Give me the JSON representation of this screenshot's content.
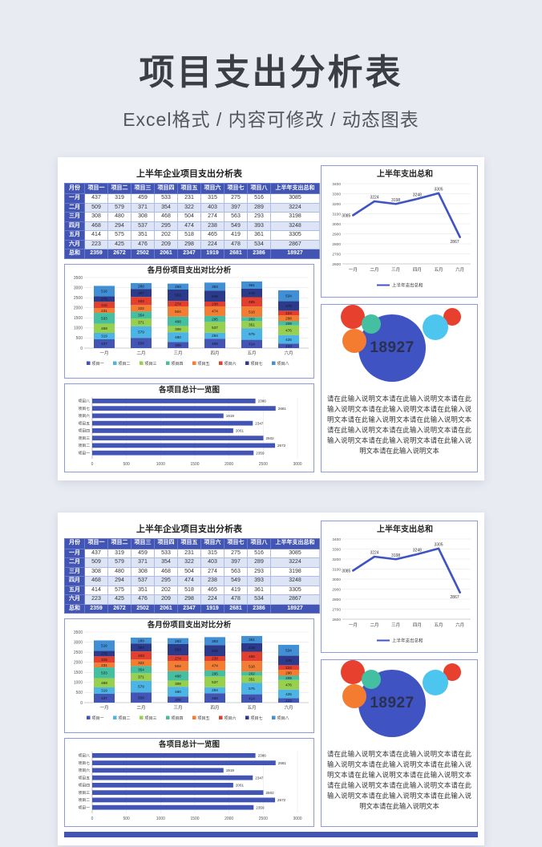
{
  "header": {
    "title": "项目支出分析表",
    "subtitle": "Excel格式 / 内容可修改 / 动态图表"
  },
  "panels": [
    {
      "bottom_strip": false
    },
    {
      "bottom_strip": true
    }
  ],
  "panel": {
    "table": {
      "title": "上半年企业项目支出分析表",
      "columns": [
        "月份",
        "项目一",
        "项目二",
        "项目三",
        "项目四",
        "项目五",
        "项目六",
        "项目七",
        "项目八",
        "上半年支出总和"
      ],
      "rows": [
        {
          "label": "一月",
          "values": [
            437,
            319,
            459,
            533,
            231,
            315,
            275,
            516
          ],
          "total": 3085
        },
        {
          "label": "二月",
          "values": [
            509,
            579,
            371,
            354,
            322,
            403,
            397,
            289
          ],
          "total": 3224
        },
        {
          "label": "三月",
          "values": [
            308,
            480,
            308,
            468,
            504,
            274,
            563,
            293
          ],
          "total": 3198
        },
        {
          "label": "四月",
          "values": [
            468,
            294,
            537,
            295,
            474,
            238,
            549,
            393
          ],
          "total": 3248
        },
        {
          "label": "五月",
          "values": [
            414,
            575,
            351,
            202,
            518,
            465,
            419,
            361
          ],
          "total": 3305
        },
        {
          "label": "六月",
          "values": [
            223,
            425,
            476,
            209,
            298,
            224,
            478,
            534
          ],
          "total": 2867
        }
      ],
      "total_row": {
        "label": "总和",
        "values": [
          2359,
          2672,
          2502,
          2061,
          2347,
          1919,
          2681,
          2386
        ],
        "total": 18927
      }
    },
    "infographic": {
      "value": "18927",
      "description": "请在此输入说明文本请在此输入说明文本请在此输入说明文本请在此输入说明文本请在此输入说明文本请在此输入说明文本请在此输入说明文本请在此输入说明文本请在此输入说明文本请在此输入说明文本请在此输入说明文本请在此输入说明文本请在此输入说明文本"
    }
  },
  "chart_data": [
    {
      "type": "bar",
      "stacked": true,
      "title": "各月份项目支出对比分析",
      "categories": [
        "一月",
        "二月",
        "三月",
        "四月",
        "五月",
        "六月"
      ],
      "series": [
        {
          "name": "项目一",
          "color": "#4355b4",
          "values": [
            437,
            509,
            308,
            468,
            414,
            223
          ]
        },
        {
          "name": "项目二",
          "color": "#4cb5e6",
          "values": [
            319,
            579,
            480,
            294,
            575,
            425
          ]
        },
        {
          "name": "项目三",
          "color": "#97cf4e",
          "values": [
            459,
            371,
            308,
            537,
            351,
            476
          ]
        },
        {
          "name": "项目四",
          "color": "#46bfa1",
          "values": [
            533,
            354,
            468,
            295,
            202,
            209
          ]
        },
        {
          "name": "项目五",
          "color": "#f37d33",
          "values": [
            231,
            322,
            504,
            474,
            518,
            298
          ]
        },
        {
          "name": "项目六",
          "color": "#e33f2f",
          "values": [
            315,
            403,
            274,
            238,
            465,
            224
          ]
        },
        {
          "name": "项目七",
          "color": "#2c3a8c",
          "values": [
            275,
            397,
            563,
            549,
            419,
            478
          ]
        },
        {
          "name": "项目八",
          "color": "#418fd4",
          "values": [
            516,
            289,
            293,
            393,
            361,
            534
          ]
        }
      ],
      "ylim": [
        0,
        3500
      ],
      "ytick_step": 500,
      "grid": true,
      "legend_position": "bottom"
    },
    {
      "type": "line",
      "title": "上半年支出总和",
      "x": [
        "一月",
        "二月",
        "三月",
        "四月",
        "五月",
        "六月"
      ],
      "values": [
        3085,
        3224,
        3198,
        3248,
        3305,
        2867
      ],
      "ylim": [
        2600,
        3400
      ],
      "ytick_step": 100,
      "grid": true,
      "line_color": "#4053c2",
      "legend": "上半年支出总和",
      "legend_position": "bottom"
    },
    {
      "type": "bar",
      "orientation": "horizontal",
      "title": "各项目总计一览图",
      "categories": [
        "项目八",
        "项目七",
        "项目六",
        "项目五",
        "项目四",
        "项目三",
        "项目二",
        "项目一"
      ],
      "values": [
        2386,
        2681,
        1919,
        2347,
        2061,
        2502,
        2672,
        2359
      ],
      "xlim": [
        0,
        3000
      ],
      "xtick_step": 500,
      "grid": true,
      "bar_color": "#4355b4"
    },
    {
      "type": "bubble-infographic",
      "center_value": "18927",
      "center_color": "#4053c2",
      "satellite_colors": [
        "#e8402e",
        "#f47c31",
        "#44bfa2",
        "#4cc6ee",
        "#e8402e"
      ]
    }
  ]
}
